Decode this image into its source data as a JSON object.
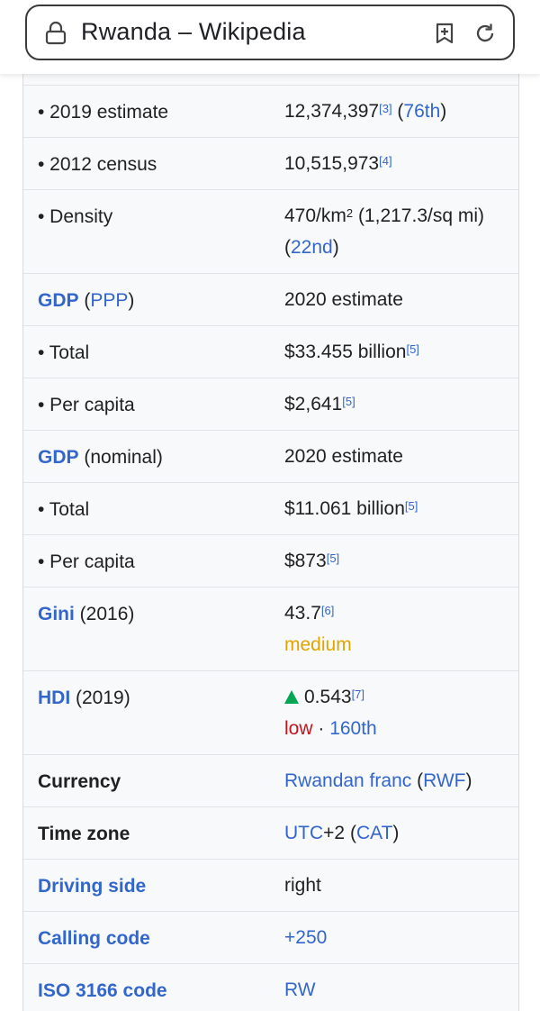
{
  "browser": {
    "page_title": "Rwanda – Wikipedia",
    "icons": [
      "lock-icon",
      "add-bookmark-icon",
      "reload-icon"
    ]
  },
  "infobox": {
    "rows": [
      {
        "label": "• 2019 estimate",
        "value": "12,374,397",
        "ref": "[3]",
        "rank_open": " (",
        "rank": "76th",
        "rank_close": ")"
      },
      {
        "label": "• 2012 census",
        "value": "10,515,973",
        "ref": "[4]"
      },
      {
        "label": "• Density",
        "value_a": "470/km",
        "sup2": "2",
        "value_b": " (1,217.3/sq mi)",
        "line2_open": "(",
        "rank": "22nd",
        "line2_close": ")"
      },
      {
        "label_link": "GDP",
        "label_open": " (",
        "label_link2": "PPP",
        "label_close": ")",
        "value": "2020 estimate"
      },
      {
        "label": "• Total",
        "value": "$33.455 billion",
        "ref": "[5]"
      },
      {
        "label": "• Per capita",
        "value": "$2,641",
        "ref": "[5]"
      },
      {
        "label_link": "GDP",
        "label_rest": " (nominal)",
        "value": "2020 estimate"
      },
      {
        "label": "• Total",
        "value": "$11.061 billion",
        "ref": "[5]"
      },
      {
        "label": "• Per capita",
        "value": "$873",
        "ref": "[5]"
      },
      {
        "label_link": "Gini",
        "label_rest": " (2016)",
        "value": "43.7",
        "ref": "[6]",
        "status": "medium"
      },
      {
        "label_link": "HDI",
        "label_rest": " (2019)",
        "value": "0.543",
        "ref": "[7]",
        "status": "low",
        "sep": " · ",
        "rank": "160th"
      },
      {
        "label": "Currency",
        "value_link": "Rwandan franc",
        "open": " (",
        "value_link2": "RWF",
        "close": ")"
      },
      {
        "label": "Time zone",
        "value_link": "UTC",
        "value_mid": "+2 (",
        "value_link2": "CAT",
        "close": ")"
      },
      {
        "label": "Driving side",
        "value": "right"
      },
      {
        "label": "Calling code",
        "value": "+250"
      },
      {
        "label": "ISO 3166 code",
        "value": "RW"
      }
    ]
  },
  "colors": {
    "link": "#3366cc",
    "medium": "#e0a600",
    "low": "#c4151c",
    "up_arrow": "#00a651"
  }
}
